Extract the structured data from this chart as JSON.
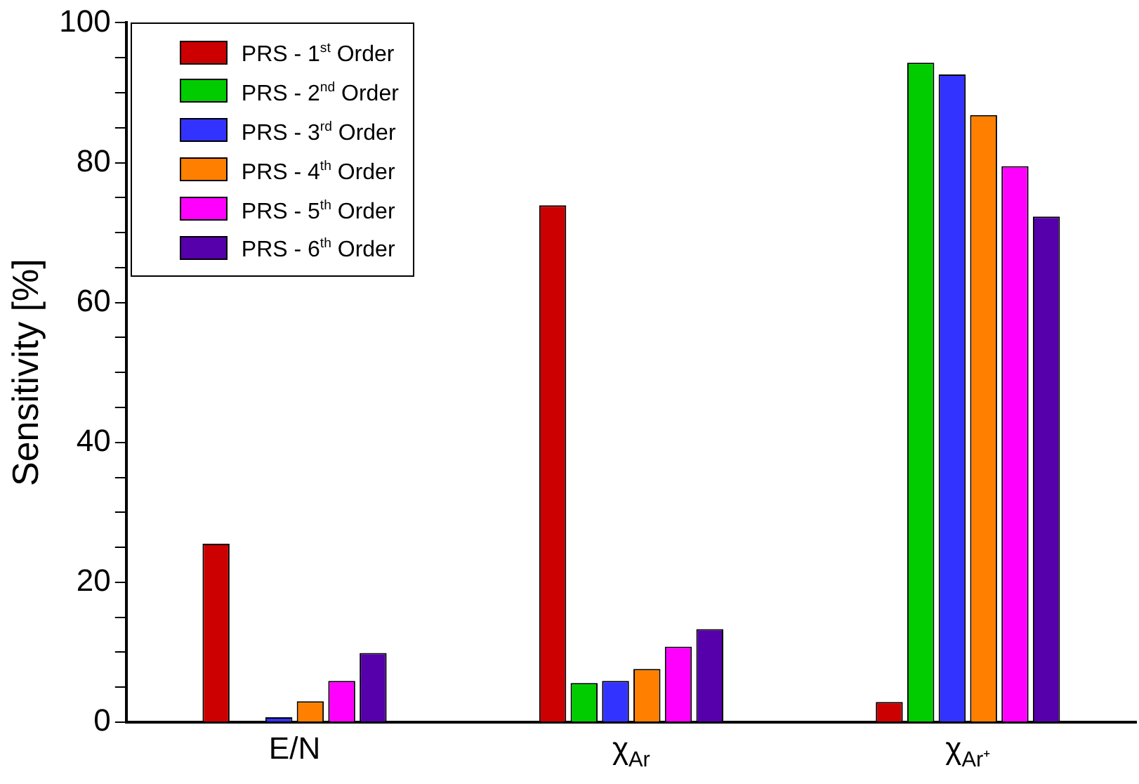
{
  "chart_data": {
    "type": "bar",
    "ylabel": "Sensitivity [%]",
    "categories": [
      "E/N",
      "χ$_{Ar}$",
      "χ$_{Ar⁺}$"
    ],
    "series": [
      {
        "name": "PRS - 1$^{st}$ Order",
        "color": "#cc0000",
        "values": [
          25.5,
          73.9,
          2.9
        ]
      },
      {
        "name": "PRS - 2$^{nd}$ Order",
        "color": "#00cc00",
        "values": [
          0,
          5.6,
          94.3
        ]
      },
      {
        "name": "PRS - 3$^{rd}$ Order",
        "color": "#3333ff",
        "values": [
          0.7,
          5.9,
          92.6
        ]
      },
      {
        "name": "PRS - 4$^{th}$ Order",
        "color": "#ff8000",
        "values": [
          3.0,
          7.6,
          86.8
        ]
      },
      {
        "name": "PRS - 5$^{th}$ Order",
        "color": "#ff00ff",
        "values": [
          5.9,
          10.8,
          79.5
        ]
      },
      {
        "name": "PRS - 6$^{th}$ Order",
        "color": "#5500aa",
        "values": [
          9.9,
          13.3,
          72.3
        ]
      }
    ],
    "ylim": [
      0,
      100
    ],
    "yticks": [
      0,
      {
        "value": 5,
        "label": null
      },
      {
        "value": 10,
        "label": null
      },
      {
        "value": 15,
        "label": null
      },
      20,
      {
        "value": 25,
        "label": null
      },
      {
        "value": 30,
        "label": null
      },
      {
        "value": 35,
        "label": null
      },
      40,
      {
        "value": 45,
        "label": null
      },
      {
        "value": 50,
        "label": null
      },
      {
        "value": 55,
        "label": null
      },
      60,
      {
        "value": 65,
        "label": null
      },
      {
        "value": 70,
        "label": null
      },
      {
        "value": 75,
        "label": null
      },
      80,
      {
        "value": 85,
        "label": null
      },
      {
        "value": 90,
        "label": null
      },
      {
        "value": 95,
        "label": null
      },
      100
    ],
    "grid": false,
    "legend": "top left"
  }
}
